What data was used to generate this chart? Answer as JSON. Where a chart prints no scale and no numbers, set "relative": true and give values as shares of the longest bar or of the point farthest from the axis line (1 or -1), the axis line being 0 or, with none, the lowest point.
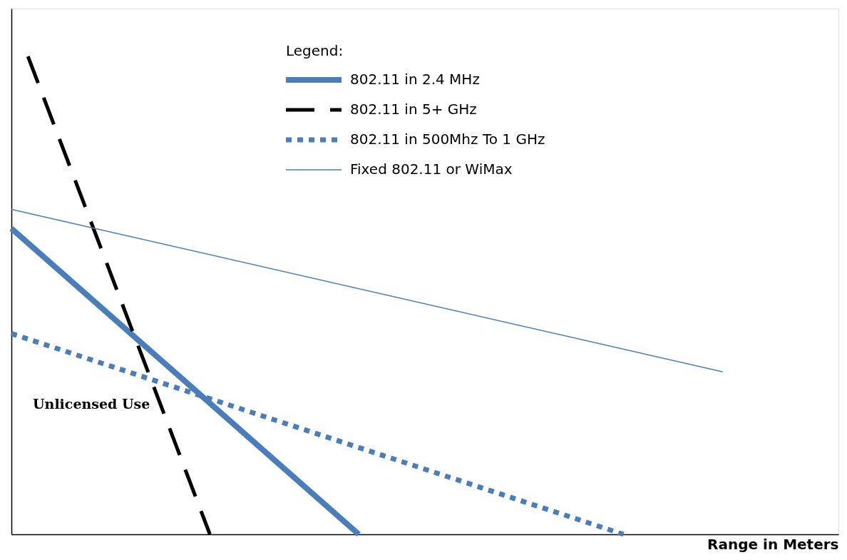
{
  "chart_data": {
    "type": "line",
    "relative": true,
    "xlabel": "Range in Meters",
    "legend_title": "Legend:",
    "legend": "top",
    "tick_labels": false,
    "grid": false,
    "categories": [
      null,
      null,
      null,
      null,
      null,
      null,
      null,
      null,
      null,
      null,
      null,
      null,
      null,
      null,
      null,
      null,
      null,
      null,
      null,
      null,
      null,
      null,
      null,
      null,
      null,
      null,
      null,
      null,
      null,
      null,
      null,
      null,
      null,
      null,
      null,
      null,
      null,
      null,
      null,
      null,
      null,
      null,
      null,
      null,
      null,
      null,
      null,
      null,
      null,
      null,
      null
    ],
    "annotations": [
      "Unlicensed Use"
    ],
    "series": [
      {
        "name": "802.11 in 2.4 MHz",
        "color": "#4a7ebb",
        "line_style": "solid",
        "values": [
          0.64,
          null,
          null,
          null,
          null,
          null,
          null,
          null,
          null,
          null,
          null,
          null,
          null,
          null,
          null,
          null,
          null,
          null,
          null,
          null,
          null,
          0,
          null,
          null,
          null,
          null,
          null,
          null,
          null,
          null,
          null,
          null,
          null,
          null,
          null,
          null,
          null,
          null,
          null,
          null,
          null,
          null,
          null,
          null,
          null,
          null,
          null,
          null,
          null,
          null,
          null
        ]
      },
      {
        "name": "802.11 in 5+ GHz",
        "color": "#000000",
        "line_style": "dashed",
        "values": [
          null,
          1,
          null,
          null,
          null,
          null,
          null,
          null,
          null,
          null,
          null,
          null,
          0,
          null,
          null,
          null,
          null,
          null,
          null,
          null,
          null,
          null,
          null,
          null,
          null,
          null,
          null,
          null,
          null,
          null,
          null,
          null,
          null,
          null,
          null,
          null,
          null,
          null,
          null,
          null,
          null,
          null,
          null,
          null,
          null,
          null,
          null,
          null,
          null,
          null,
          null
        ]
      },
      {
        "name": "802.11 in 500Mhz To 1 GHz",
        "color": "#4a7ebb",
        "line_style": "dotted",
        "values": [
          0.42,
          null,
          null,
          null,
          null,
          null,
          null,
          null,
          null,
          null,
          null,
          null,
          null,
          null,
          null,
          null,
          null,
          null,
          null,
          null,
          null,
          null,
          null,
          null,
          null,
          null,
          null,
          null,
          null,
          null,
          null,
          null,
          null,
          null,
          null,
          null,
          null,
          0,
          null,
          null,
          null,
          null,
          null,
          null,
          null,
          null,
          null,
          null,
          null,
          null,
          null
        ]
      },
      {
        "name": "Fixed 802.11 or WiMax",
        "color": "#4a7ebb",
        "line_style": "solid",
        "values": [
          0.68,
          null,
          null,
          null,
          null,
          null,
          null,
          null,
          null,
          null,
          null,
          null,
          null,
          null,
          null,
          null,
          null,
          null,
          null,
          null,
          null,
          null,
          null,
          null,
          null,
          null,
          null,
          null,
          null,
          null,
          null,
          null,
          null,
          null,
          null,
          null,
          null,
          null,
          null,
          null,
          null,
          null,
          null,
          0.34,
          null,
          null,
          null,
          null,
          null,
          null,
          null
        ]
      }
    ]
  }
}
